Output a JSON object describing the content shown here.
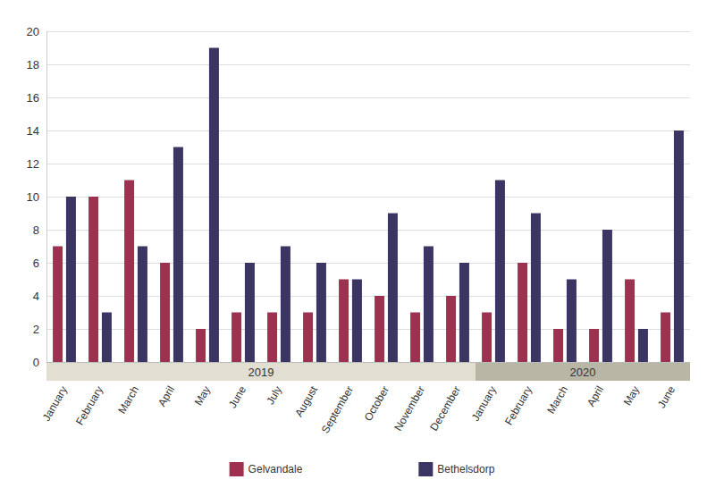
{
  "chart_data": {
    "type": "bar",
    "categories": [
      "January",
      "February",
      "March",
      "April",
      "May",
      "June",
      "July",
      "August",
      "September",
      "October",
      "November",
      "December",
      "January",
      "February",
      "March",
      "April",
      "May",
      "June"
    ],
    "x_groups": [
      {
        "label": "2019",
        "size": 12
      },
      {
        "label": "2020",
        "size": 6
      }
    ],
    "series": [
      {
        "name": "Gelvandale",
        "color": "#9e3050",
        "values": [
          7,
          10,
          11,
          6,
          2,
          3,
          3,
          3,
          5,
          4,
          3,
          4,
          3,
          6,
          2,
          2,
          5,
          3
        ]
      },
      {
        "name": "Bethelsdorp",
        "color": "#3a3562",
        "values": [
          10,
          3,
          7,
          13,
          19,
          6,
          7,
          6,
          5,
          9,
          7,
          6,
          11,
          9,
          5,
          8,
          2,
          14
        ]
      }
    ],
    "ylim": [
      0,
      20
    ],
    "yticks": [
      0,
      2,
      4,
      6,
      8,
      10,
      12,
      14,
      16,
      18,
      20
    ],
    "grid": true,
    "legend": "bottom"
  }
}
